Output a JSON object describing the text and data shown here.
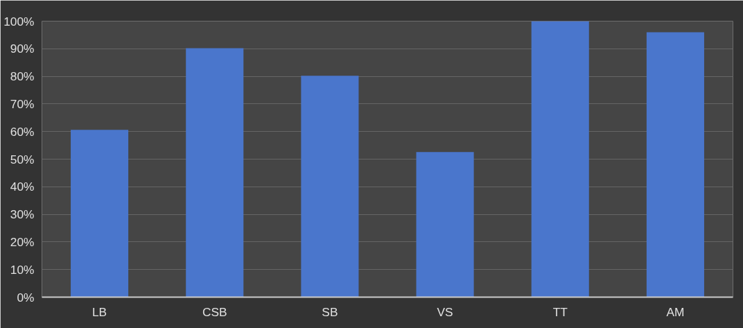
{
  "chart_data": {
    "type": "bar",
    "categories": [
      "LB",
      "CSB",
      "SB",
      "VS",
      "TT",
      "AM"
    ],
    "values": [
      60.6,
      90.2,
      80.2,
      52.6,
      100,
      96
    ],
    "color": "#4a76cc",
    "ylim": [
      0,
      100
    ],
    "yticks": [
      {
        "value": 0,
        "label": "0%"
      },
      {
        "value": 10,
        "label": "10%"
      },
      {
        "value": 20,
        "label": "20%"
      },
      {
        "value": 30,
        "label": "30%"
      },
      {
        "value": 40,
        "label": "40%"
      },
      {
        "value": 50,
        "label": "50%"
      },
      {
        "value": 60,
        "label": "60%"
      },
      {
        "value": 70,
        "label": "70%"
      },
      {
        "value": 80,
        "label": "80%"
      },
      {
        "value": 90,
        "label": "90%"
      },
      {
        "value": 100,
        "label": "100%"
      }
    ],
    "grid": "y"
  }
}
